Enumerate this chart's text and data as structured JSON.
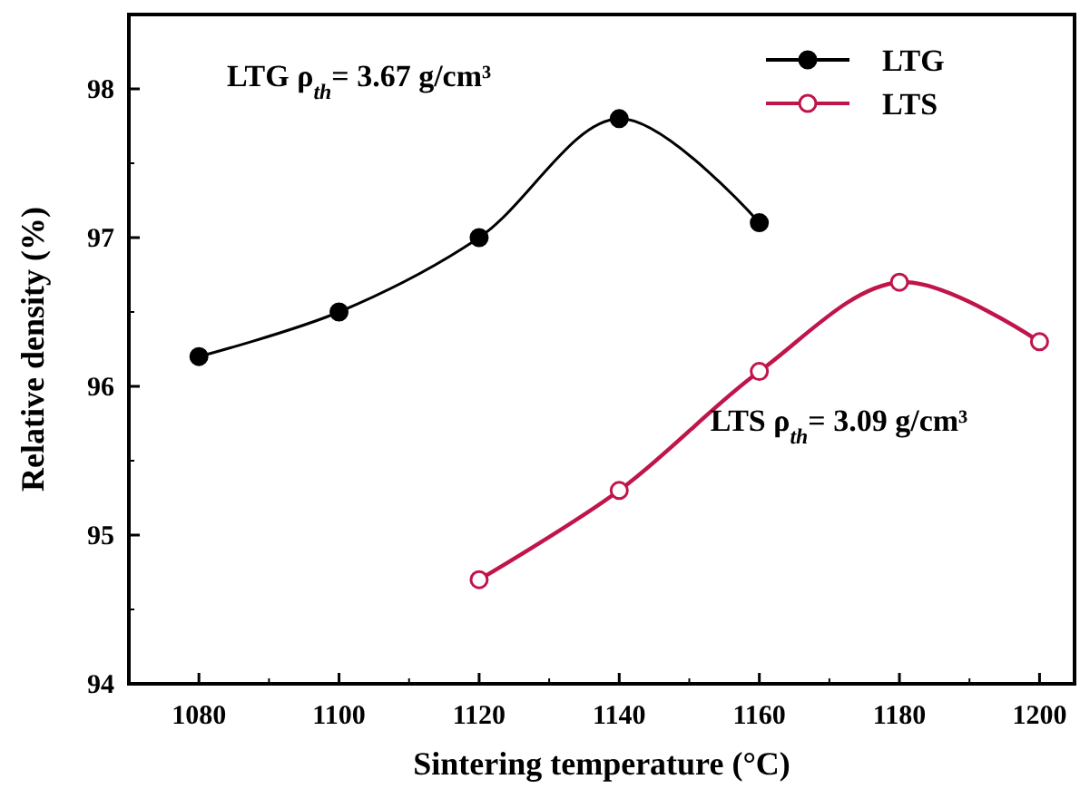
{
  "chart_data": {
    "type": "line",
    "xlabel": "Sintering temperature (°C)",
    "ylabel": "Relative density (%)",
    "xlim": [
      1070,
      1205
    ],
    "xticks": [
      1080,
      1100,
      1120,
      1140,
      1160,
      1180,
      1200
    ],
    "ylim": [
      94,
      98.5
    ],
    "yticks": [
      94,
      95,
      96,
      97,
      98
    ],
    "series": [
      {
        "name": "LTG",
        "color": "#000000",
        "x": [
          1080,
          1100,
          1120,
          1140,
          1160
        ],
        "values": [
          96.2,
          96.5,
          97.0,
          97.8,
          97.1
        ]
      },
      {
        "name": "LTS",
        "color": "#c0154a",
        "x": [
          1120,
          1140,
          1160,
          1180,
          1200
        ],
        "values": [
          94.7,
          95.3,
          96.1,
          96.7,
          96.3
        ]
      }
    ],
    "annotations": [
      "LTG ρ$_{th}$= 3.67 g/cm³",
      "LTS ρ$_{th}$= 3.09 g/cm³"
    ],
    "legend": "top right",
    "marker": "circle",
    "line_style": "solid",
    "grid": false
  }
}
